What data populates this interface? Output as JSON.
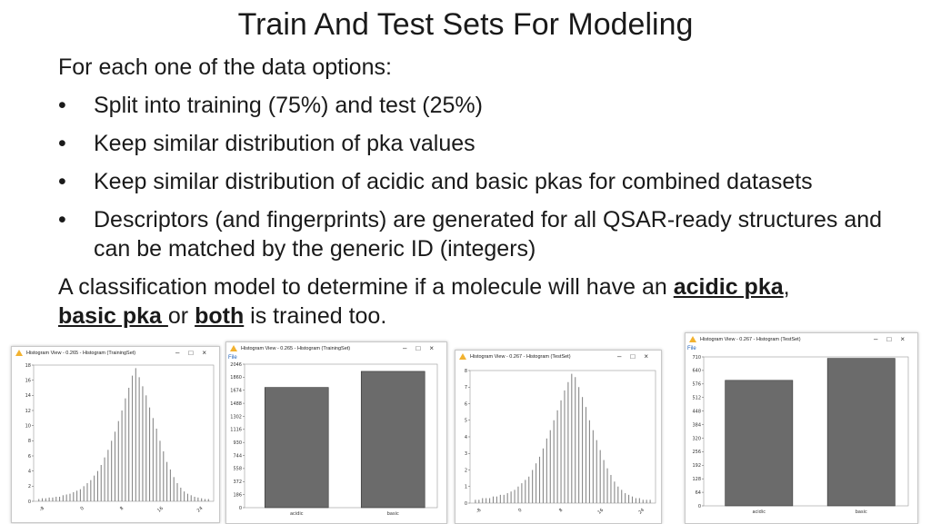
{
  "slide": {
    "title": "Train And Test Sets For Modeling",
    "intro": "For each one of the data options:",
    "bullet_symbol": "•",
    "bullets": [
      "Split into training (75%) and test (25%)",
      "Keep similar distribution of pka values",
      "Keep similar distribution of acidic and basic pkas for combined datasets",
      "Descriptors (and fingerprints) are generated for all QSAR-ready structures and can be matched by the generic ID (integers)"
    ],
    "closing": {
      "before": "A classification model to determine if a molecule will have an ",
      "acidic": "acidic pka",
      "comma": ",",
      "basic": "basic pka ",
      "or": "or ",
      "both": "both",
      "after": " is trained too."
    }
  },
  "windows": [
    {
      "title": "Histogram View - 0.265 - Histogram (TrainingSet)",
      "menu": "",
      "controls": "–□×"
    },
    {
      "title": "Histogram View - 0.265 - Histogram (TrainingSet)",
      "menu": "File",
      "controls": "–□×"
    },
    {
      "title": "Histogram View - 0.267 - Histogram (TestSet)",
      "menu": "",
      "controls": "–□×"
    },
    {
      "title": "Histogram View - 0.267 - Histogram (TestSet)",
      "menu": "File",
      "controls": "–□×"
    }
  ],
  "chart_data": [
    {
      "type": "bar",
      "title": "",
      "distribution": "pka histogram, training set",
      "y_ticks": [
        "0",
        "2",
        "4",
        "6",
        "8",
        "10",
        "12",
        "14",
        "16",
        "18"
      ],
      "x_ticks": [
        "-8",
        "0",
        "8",
        "16",
        "24"
      ],
      "ylim": [
        0,
        18
      ],
      "values": [
        0.3,
        0.4,
        0.4,
        0.5,
        0.5,
        0.6,
        0.6,
        0.8,
        0.9,
        1.0,
        1.2,
        1.4,
        1.6,
        2.0,
        2.4,
        2.8,
        3.4,
        4.0,
        4.8,
        5.8,
        6.8,
        8.0,
        9.2,
        10.6,
        12.0,
        13.6,
        15.0,
        16.6,
        17.6,
        16.4,
        15.2,
        14.0,
        12.4,
        11.0,
        9.6,
        8.0,
        6.6,
        5.2,
        4.2,
        3.2,
        2.4,
        1.8,
        1.3,
        1.0,
        0.8,
        0.6,
        0.5,
        0.4,
        0.3,
        0.3
      ],
      "color": "#888888"
    },
    {
      "type": "bar",
      "title": "",
      "categories": [
        "acidic",
        "basic"
      ],
      "values": [
        1870,
        2120
      ],
      "y_ticks": [
        "0",
        "186",
        "372",
        "558",
        "744",
        "930",
        "1116",
        "1302",
        "1488",
        "1674",
        "1860",
        "2046"
      ],
      "ylim": [
        0,
        2232
      ],
      "color": "#6b6b6b"
    },
    {
      "type": "bar",
      "title": "",
      "distribution": "pka histogram, test set",
      "y_ticks": [
        "0",
        "1",
        "2",
        "3",
        "4",
        "5",
        "6",
        "7",
        "8"
      ],
      "x_ticks": [
        "-8",
        "0",
        "8",
        "16",
        "24"
      ],
      "ylim": [
        0,
        8
      ],
      "values": [
        0.2,
        0.2,
        0.3,
        0.3,
        0.3,
        0.4,
        0.4,
        0.5,
        0.5,
        0.6,
        0.7,
        0.8,
        1.0,
        1.2,
        1.4,
        1.6,
        2.0,
        2.4,
        2.8,
        3.3,
        3.9,
        4.4,
        5.0,
        5.6,
        6.2,
        6.8,
        7.3,
        7.8,
        7.6,
        7.0,
        6.4,
        5.8,
        5.0,
        4.4,
        3.8,
        3.2,
        2.6,
        2.1,
        1.7,
        1.3,
        1.0,
        0.8,
        0.6,
        0.5,
        0.4,
        0.3,
        0.3,
        0.2,
        0.2,
        0.2
      ],
      "color": "#888888"
    },
    {
      "type": "bar",
      "title": "",
      "categories": [
        "acidic",
        "basic"
      ],
      "values": [
        600,
        705
      ],
      "y_ticks": [
        "0",
        "64",
        "128",
        "192",
        "256",
        "320",
        "384",
        "448",
        "512",
        "576",
        "640",
        "710"
      ],
      "ylim": [
        0,
        712
      ],
      "color": "#6b6b6b"
    }
  ]
}
